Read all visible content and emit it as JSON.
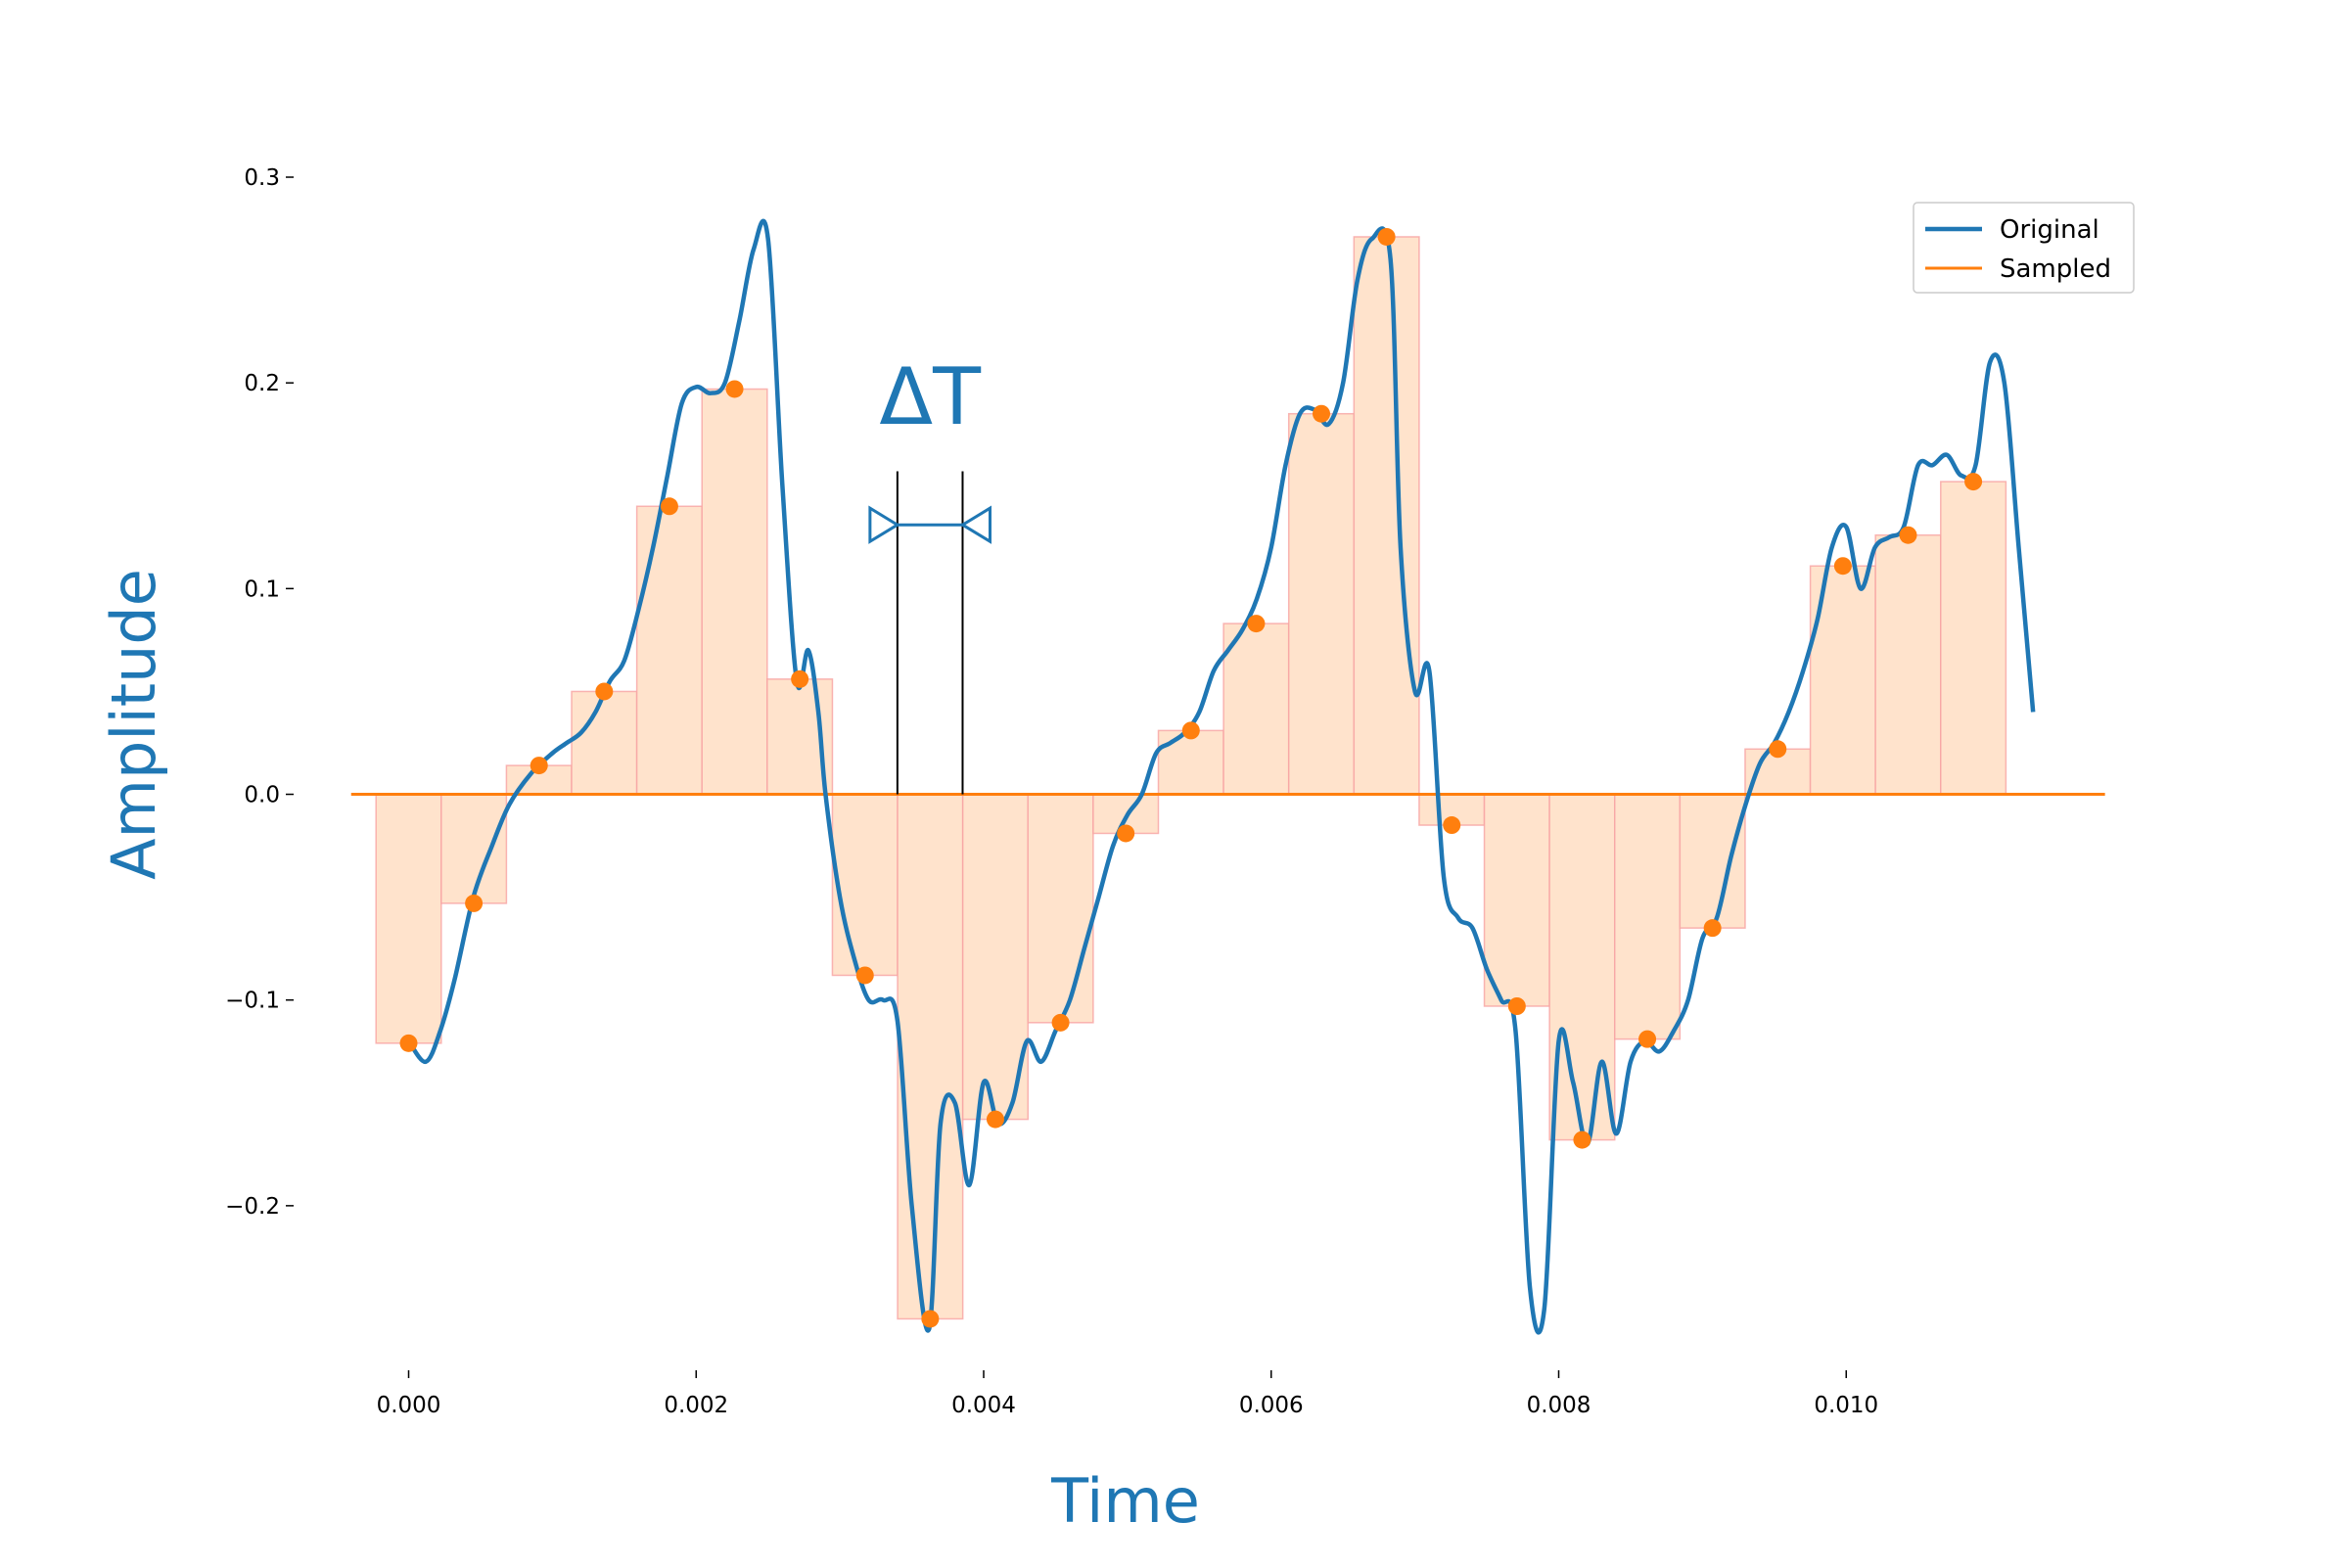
{
  "chart_data": {
    "type": "line",
    "xlabel": "Time",
    "ylabel": "Amplitude",
    "xlim": [
      -0.0008,
      0.012
    ],
    "ylim": [
      -0.28,
      0.31
    ],
    "x_ticks": [
      0.0,
      0.002,
      0.004,
      0.006,
      0.008,
      0.01
    ],
    "x_tick_labels": [
      "0.000",
      "0.002",
      "0.004",
      "0.006",
      "0.008",
      "0.010"
    ],
    "y_ticks": [
      -0.2,
      -0.1,
      0.0,
      0.1,
      0.2,
      0.3
    ],
    "y_tick_labels": [
      "−0.2",
      "−0.1",
      "0.0",
      "0.1",
      "0.2",
      "0.3"
    ],
    "grid": false,
    "legend_position": "top-right",
    "sample_interval": 0.0004535,
    "annotation": {
      "text": "ΔT",
      "x_start": 0.0034,
      "x_end": 0.0038535
    },
    "colors": {
      "original": "#1f77b4",
      "sampled": "#ff7f0e",
      "bar_fill": "#ffe3cc",
      "bar_edge": "#f7a3a3",
      "title": "#1f77b4"
    },
    "series": [
      {
        "name": "Original",
        "x": [
          0.0,
          0.00012,
          0.00022,
          0.00032,
          0.00045,
          0.00058,
          0.0007,
          0.00085,
          0.001,
          0.0011,
          0.0012,
          0.0013,
          0.0014,
          0.0015,
          0.0016,
          0.0017,
          0.0018,
          0.0019,
          0.002,
          0.0021,
          0.0022,
          0.0023,
          0.0024,
          0.0025,
          0.0026,
          0.0027,
          0.00278,
          0.00285,
          0.0029,
          0.003,
          0.0031,
          0.0032,
          0.0033,
          0.0034,
          0.0035,
          0.00362,
          0.0037,
          0.0038,
          0.0039,
          0.004,
          0.0041,
          0.0042,
          0.0043,
          0.0044,
          0.0045,
          0.0046,
          0.0047,
          0.0048,
          0.0049,
          0.005,
          0.0051,
          0.0052,
          0.0053,
          0.0054,
          0.0055,
          0.0056,
          0.0057,
          0.0058,
          0.0059,
          0.006,
          0.0061,
          0.0062,
          0.0063,
          0.0064,
          0.0065,
          0.0066,
          0.0067,
          0.00683,
          0.0069,
          0.007,
          0.0071,
          0.0072,
          0.0073,
          0.0074,
          0.0075,
          0.0076,
          0.0077,
          0.0078,
          0.0079,
          0.008,
          0.0081,
          0.0082,
          0.0083,
          0.0084,
          0.0085,
          0.0086,
          0.0087,
          0.0088,
          0.0089,
          0.009,
          0.0091,
          0.0092,
          0.0093,
          0.0094,
          0.0095,
          0.0096,
          0.0097,
          0.0098,
          0.0099,
          0.01,
          0.0101,
          0.0102,
          0.0103,
          0.0104,
          0.0105,
          0.0106,
          0.0107,
          0.0108,
          0.0109,
          0.011,
          0.0111,
          0.0112,
          0.0113
        ],
        "y": [
          -0.12,
          -0.13,
          -0.115,
          -0.09,
          -0.05,
          -0.025,
          -0.005,
          0.01,
          0.02,
          0.025,
          0.03,
          0.04,
          0.055,
          0.065,
          0.09,
          0.12,
          0.155,
          0.19,
          0.198,
          0.195,
          0.2,
          0.23,
          0.265,
          0.27,
          0.15,
          0.055,
          0.07,
          0.04,
          0.0,
          -0.05,
          -0.08,
          -0.1,
          -0.1,
          -0.11,
          -0.2,
          -0.26,
          -0.16,
          -0.15,
          -0.19,
          -0.14,
          -0.16,
          -0.15,
          -0.12,
          -0.13,
          -0.115,
          -0.1,
          -0.075,
          -0.05,
          -0.025,
          -0.01,
          0.0,
          0.02,
          0.025,
          0.03,
          0.04,
          0.06,
          0.07,
          0.08,
          0.095,
          0.12,
          0.16,
          0.185,
          0.187,
          0.18,
          0.2,
          0.25,
          0.27,
          0.26,
          0.12,
          0.05,
          0.06,
          -0.04,
          -0.06,
          -0.065,
          -0.085,
          -0.1,
          -0.115,
          -0.24,
          -0.25,
          -0.12,
          -0.14,
          -0.17,
          -0.13,
          -0.165,
          -0.13,
          -0.12,
          -0.125,
          -0.115,
          -0.1,
          -0.07,
          -0.06,
          -0.03,
          -0.005,
          0.015,
          0.025,
          0.04,
          0.06,
          0.085,
          0.12,
          0.13,
          0.1,
          0.12,
          0.125,
          0.13,
          0.16,
          0.16,
          0.165,
          0.155,
          0.16,
          0.21,
          0.2,
          0.12,
          0.04
        ]
      },
      {
        "name": "Sampled",
        "x": [
          0.0,
          0.0004535,
          0.000907,
          0.0013605,
          0.001814,
          0.0022675,
          0.002721,
          0.0031745,
          0.003628,
          0.0040815,
          0.004535,
          0.0049885,
          0.005442,
          0.0058955,
          0.006349,
          0.0068025,
          0.007256,
          0.0077095,
          0.008163,
          0.0086165,
          0.00907,
          0.0095235,
          0.009977,
          0.0104305,
          0.010884
        ],
        "y": [
          -0.121,
          -0.053,
          0.014,
          0.05,
          0.14,
          0.197,
          0.056,
          -0.088,
          -0.255,
          -0.158,
          -0.111,
          -0.019,
          0.031,
          0.083,
          0.185,
          0.271,
          -0.015,
          -0.103,
          -0.168,
          -0.119,
          -0.065,
          0.022,
          0.111,
          0.126,
          0.152
        ]
      }
    ]
  }
}
